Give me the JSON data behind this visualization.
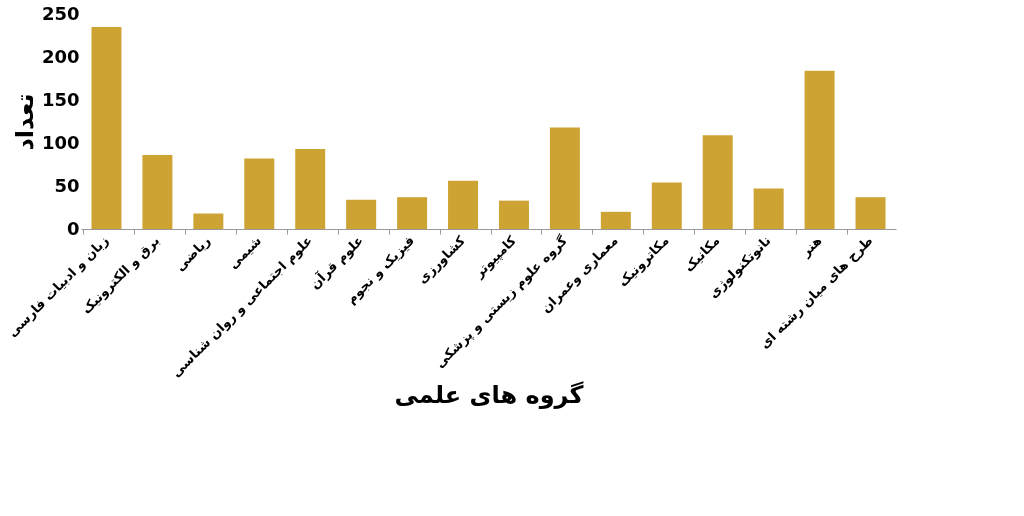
{
  "chart_data": {
    "type": "bar",
    "xlabel": "گروه های علمی",
    "ylabel": "تعداد",
    "categories": [
      "زبان و ادبیات فارسی",
      "برق و الکترونیک",
      "ریاضی",
      "شیمی",
      "علوم اجتماعی و روان شناسی",
      "علوم قرآن",
      "فیزیک و نجوم",
      "کشاورزی",
      "کامپیوتر",
      "گروه علوم زیستی و پزشکی",
      "معماری وعمران",
      "مکاترونیک",
      "مکانیک",
      "نانوتکنولوژی",
      "هنر",
      "طرح های میان رشته ای"
    ],
    "values": [
      235,
      86,
      18,
      82,
      93,
      34,
      37,
      56,
      33,
      118,
      20,
      54,
      109,
      47,
      184,
      37
    ],
    "color": "#cda434",
    "ylim": [
      0,
      250
    ],
    "yticks": [
      0,
      50,
      100,
      150,
      200,
      250
    ],
    "grid": false
  }
}
